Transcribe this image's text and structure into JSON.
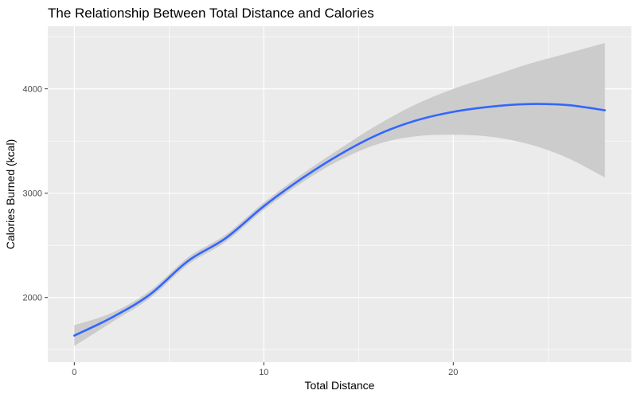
{
  "chart_data": {
    "type": "line",
    "title": "The Relationship Between Total Distance and Calories",
    "xlabel": "Total Distance",
    "ylabel": "Calories Burned (kcal)",
    "xlim": [
      -1.4,
      29.4
    ],
    "ylim": [
      1380,
      4600
    ],
    "x_ticks": [
      0,
      10,
      20
    ],
    "y_ticks": [
      2000,
      3000,
      4000
    ],
    "x_tick_labels": [
      "0",
      "10",
      "20"
    ],
    "y_tick_labels": [
      "2000",
      "3000",
      "4000"
    ],
    "grid": true,
    "legend": "none",
    "colors": {
      "panel": "#ebebeb",
      "grid": "#ffffff",
      "line": "#3366ff",
      "ribbon": "#cccccc"
    },
    "series": [
      {
        "x": [
          0,
          2,
          4,
          6,
          8,
          10,
          12,
          14,
          16,
          18,
          20,
          22,
          24,
          26,
          28
        ],
        "y": [
          1635,
          1810,
          2030,
          2350,
          2570,
          2875,
          3140,
          3370,
          3560,
          3695,
          3780,
          3830,
          3855,
          3845,
          3795
        ],
        "ymin": [
          1535,
          1765,
          1995,
          2315,
          2535,
          2840,
          3100,
          3315,
          3470,
          3545,
          3560,
          3540,
          3470,
          3340,
          3150
        ],
        "ymax": [
          1735,
          1855,
          2065,
          2385,
          2605,
          2910,
          3180,
          3425,
          3655,
          3850,
          4000,
          4120,
          4240,
          4340,
          4440
        ]
      }
    ]
  }
}
